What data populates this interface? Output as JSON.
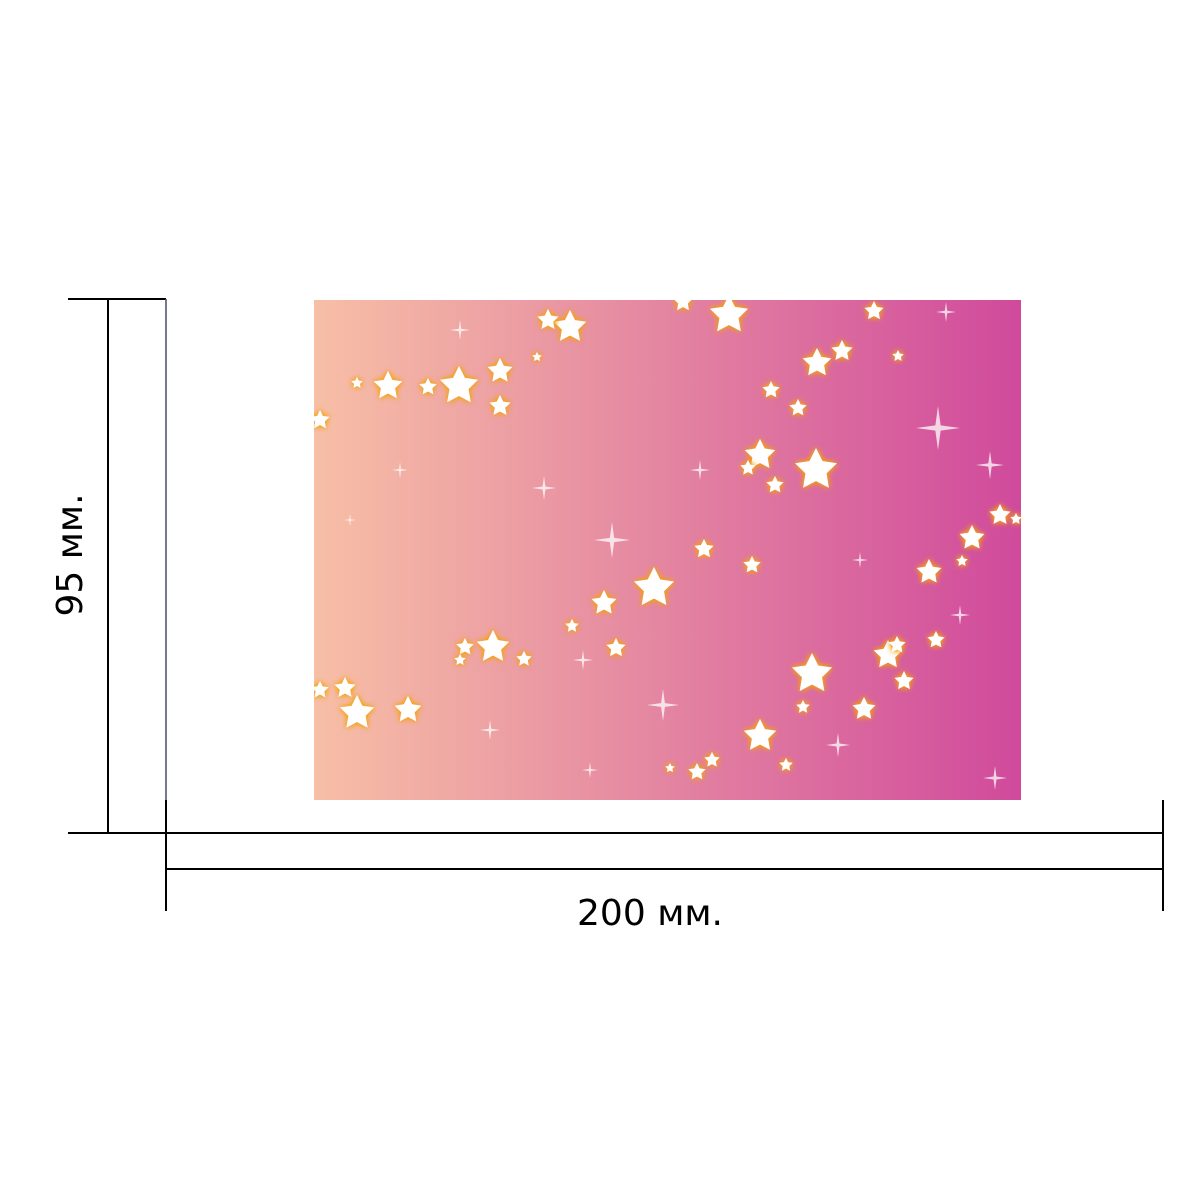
{
  "dimensions": {
    "width_label": "200 мм.",
    "height_label": "95 мм."
  },
  "card": {
    "gradient_start": "#f7bfa6",
    "gradient_end": "#d04a9c",
    "star_fill": "#ffffff",
    "star_glow": "#f5a300"
  }
}
